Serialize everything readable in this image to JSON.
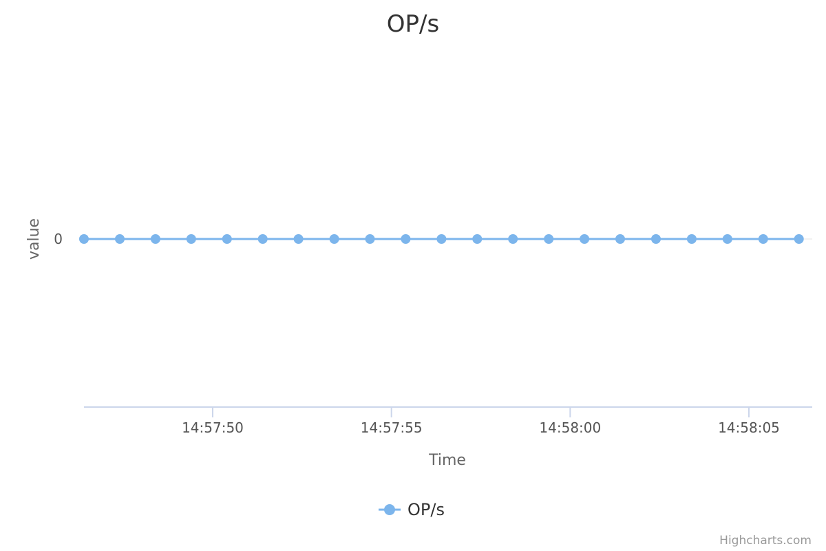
{
  "chart_data": {
    "type": "line",
    "title": "OP/s",
    "xlabel": "Time",
    "ylabel": "value",
    "x_tick_labels": [
      "14:57:50",
      "14:57:55",
      "14:58:00",
      "14:58:05"
    ],
    "y_tick_labels": [
      "0"
    ],
    "series": [
      {
        "name": "OP/s",
        "color": "#7cb5ec",
        "x": [
          "14:57:46.4",
          "14:57:47.4",
          "14:57:48.4",
          "14:57:49.4",
          "14:57:50.4",
          "14:57:51.4",
          "14:57:52.4",
          "14:57:53.4",
          "14:57:54.4",
          "14:57:55.4",
          "14:57:56.4",
          "14:57:57.4",
          "14:57:58.4",
          "14:57:59.4",
          "14:58:00.4",
          "14:58:01.4",
          "14:58:02.4",
          "14:58:03.4",
          "14:58:04.4",
          "14:58:05.4",
          "14:58:06.4"
        ],
        "values": [
          0,
          0,
          0,
          0,
          0,
          0,
          0,
          0,
          0,
          0,
          0,
          0,
          0,
          0,
          0,
          0,
          0,
          0,
          0,
          0,
          0
        ]
      }
    ],
    "grid": false,
    "legend_position": "bottom-center"
  },
  "credits": "Highcharts.com"
}
